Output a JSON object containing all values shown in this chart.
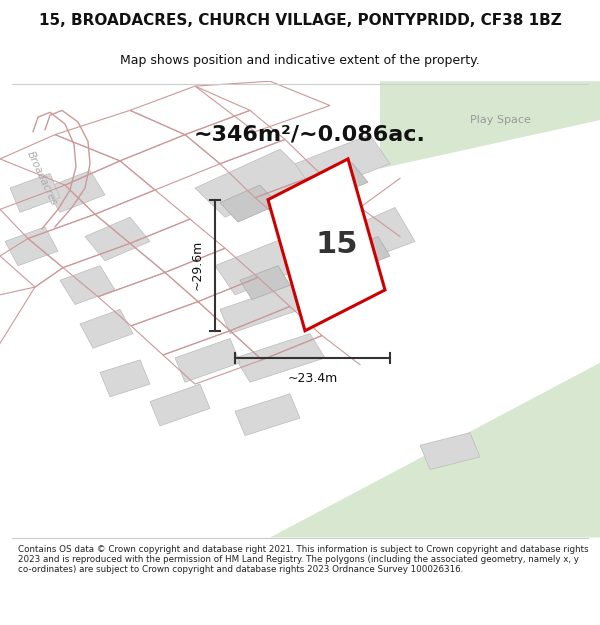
{
  "title": "15, BROADACRES, CHURCH VILLAGE, PONTYPRIDD, CF38 1BZ",
  "subtitle": "Map shows position and indicative extent of the property.",
  "area_text": "~346m²/~0.086ac.",
  "label_15": "15",
  "dim_height": "~29.6m",
  "dim_width": "~23.4m",
  "play_space_label": "Play Space",
  "broadacres_label": "Broadacres",
  "footer": "Contains OS data © Crown copyright and database right 2021. This information is subject to Crown copyright and database rights 2023 and is reproduced with the permission of HM Land Registry. The polygons (including the associated geometry, namely x, y co-ordinates) are subject to Crown copyright and database rights 2023 Ordnance Survey 100026316.",
  "bg_color": "#f5f5f0",
  "map_bg": "#f5f5f0",
  "plot_fill": "#ffffff",
  "red_color": "#cc0000",
  "grey_line": "#cc9999",
  "dark_grey": "#888888",
  "green_area": "#d8e8d0",
  "building_fill": "#d8d8d8",
  "footer_color": "#222222",
  "title_color": "#111111"
}
